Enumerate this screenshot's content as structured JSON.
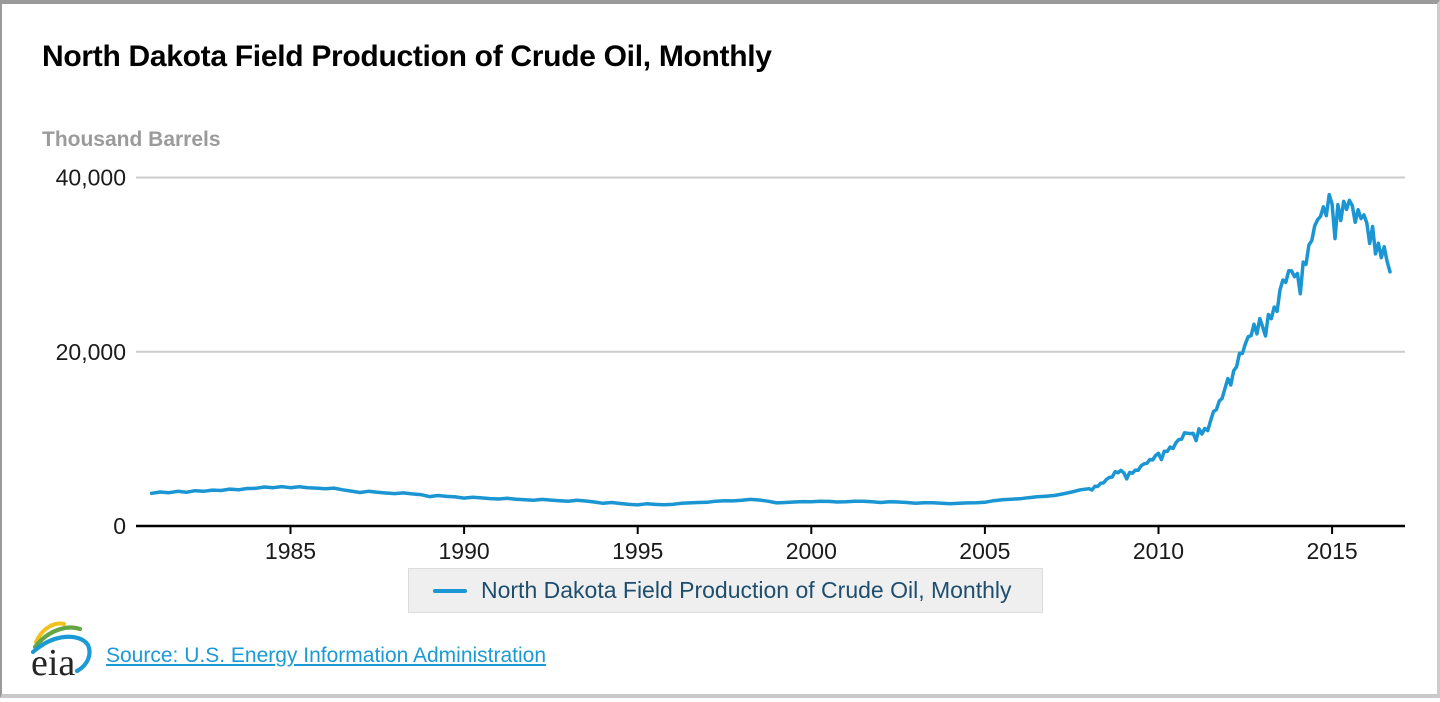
{
  "page": {
    "title": "North Dakota Field Production of Crude Oil, Monthly",
    "units_label": "Thousand Barrels",
    "source_link": "Source: U.S. Energy Information Administration",
    "logo_text": "eia"
  },
  "legend": {
    "label": "North Dakota Field Production of Crude Oil, Monthly"
  },
  "colors": {
    "line": "#1b96d2",
    "legend_swatch": "#1b96d2",
    "legend_text": "#1d4e6e",
    "legend_bg": "#efefef",
    "legend_border": "#dcdcdc",
    "grid": "#cccccc",
    "axis": "#000000",
    "tick_label": "#1a1a1a",
    "units_label": "#9b9b9b",
    "link": "#1b9ad6",
    "frame_dark": "#9a9a9a",
    "frame_light": "#cccccc",
    "logo_yellow": "#efc31c",
    "logo_green": "#62a744",
    "logo_blue": "#1c9ad6"
  },
  "chart_data": {
    "type": "line",
    "title": "North Dakota Field Production of Crude Oil, Monthly",
    "xlabel": "",
    "ylabel": "Thousand Barrels",
    "ylim": [
      0,
      40000
    ],
    "yticks": [
      0,
      20000,
      40000
    ],
    "ytick_labels": [
      "0",
      "20,000",
      "40,000"
    ],
    "xticks": [
      1985,
      1990,
      1995,
      2000,
      2005,
      2010,
      2015
    ],
    "xtick_labels": [
      "1985",
      "1990",
      "1995",
      "2000",
      "2005",
      "2010",
      "2015"
    ],
    "x_axis_range": [
      1980.55,
      2017.1
    ],
    "grid": "horizontal-only",
    "legend_position": "bottom",
    "series": [
      {
        "name": "North Dakota Field Production of Crude Oil, Monthly",
        "color": "#1b96d2",
        "x_unit": "decimal-year",
        "y_unit": "thousand barrels per month",
        "points": [
          [
            1981.0,
            3750
          ],
          [
            1981.25,
            3900
          ],
          [
            1981.5,
            3820
          ],
          [
            1981.75,
            3980
          ],
          [
            1982.0,
            3870
          ],
          [
            1982.25,
            4050
          ],
          [
            1982.5,
            3980
          ],
          [
            1982.75,
            4120
          ],
          [
            1983.0,
            4080
          ],
          [
            1983.25,
            4230
          ],
          [
            1983.5,
            4150
          ],
          [
            1983.75,
            4300
          ],
          [
            1984.0,
            4330
          ],
          [
            1984.25,
            4480
          ],
          [
            1984.5,
            4400
          ],
          [
            1984.75,
            4520
          ],
          [
            1985.0,
            4400
          ],
          [
            1985.25,
            4500
          ],
          [
            1985.5,
            4380
          ],
          [
            1985.75,
            4350
          ],
          [
            1986.0,
            4280
          ],
          [
            1986.25,
            4350
          ],
          [
            1986.5,
            4150
          ],
          [
            1986.75,
            4000
          ],
          [
            1987.0,
            3850
          ],
          [
            1987.25,
            3980
          ],
          [
            1987.5,
            3870
          ],
          [
            1987.75,
            3790
          ],
          [
            1988.0,
            3720
          ],
          [
            1988.25,
            3800
          ],
          [
            1988.5,
            3680
          ],
          [
            1988.75,
            3600
          ],
          [
            1989.0,
            3380
          ],
          [
            1989.25,
            3500
          ],
          [
            1989.5,
            3400
          ],
          [
            1989.75,
            3340
          ],
          [
            1990.0,
            3200
          ],
          [
            1990.25,
            3300
          ],
          [
            1990.5,
            3220
          ],
          [
            1990.75,
            3150
          ],
          [
            1991.0,
            3100
          ],
          [
            1991.25,
            3180
          ],
          [
            1991.5,
            3080
          ],
          [
            1991.75,
            3020
          ],
          [
            1992.0,
            2950
          ],
          [
            1992.25,
            3050
          ],
          [
            1992.5,
            2970
          ],
          [
            1992.75,
            2900
          ],
          [
            1993.0,
            2850
          ],
          [
            1993.25,
            2950
          ],
          [
            1993.5,
            2870
          ],
          [
            1993.75,
            2750
          ],
          [
            1994.0,
            2600
          ],
          [
            1994.25,
            2700
          ],
          [
            1994.5,
            2580
          ],
          [
            1994.75,
            2480
          ],
          [
            1995.0,
            2420
          ],
          [
            1995.25,
            2550
          ],
          [
            1995.5,
            2480
          ],
          [
            1995.75,
            2450
          ],
          [
            1996.0,
            2480
          ],
          [
            1996.25,
            2600
          ],
          [
            1996.5,
            2650
          ],
          [
            1996.75,
            2700
          ],
          [
            1997.0,
            2720
          ],
          [
            1997.25,
            2850
          ],
          [
            1997.5,
            2900
          ],
          [
            1997.75,
            2880
          ],
          [
            1998.0,
            2950
          ],
          [
            1998.25,
            3050
          ],
          [
            1998.5,
            2980
          ],
          [
            1998.75,
            2850
          ],
          [
            1999.0,
            2650
          ],
          [
            1999.25,
            2700
          ],
          [
            1999.5,
            2750
          ],
          [
            1999.75,
            2800
          ],
          [
            2000.0,
            2780
          ],
          [
            2000.25,
            2850
          ],
          [
            2000.5,
            2820
          ],
          [
            2000.75,
            2760
          ],
          [
            2001.0,
            2780
          ],
          [
            2001.25,
            2850
          ],
          [
            2001.5,
            2830
          ],
          [
            2001.75,
            2780
          ],
          [
            2002.0,
            2700
          ],
          [
            2002.25,
            2780
          ],
          [
            2002.5,
            2760
          ],
          [
            2002.75,
            2700
          ],
          [
            2003.0,
            2620
          ],
          [
            2003.25,
            2680
          ],
          [
            2003.5,
            2660
          ],
          [
            2003.75,
            2600
          ],
          [
            2004.0,
            2550
          ],
          [
            2004.25,
            2620
          ],
          [
            2004.5,
            2650
          ],
          [
            2004.75,
            2680
          ],
          [
            2005.0,
            2720
          ],
          [
            2005.25,
            2900
          ],
          [
            2005.5,
            3020
          ],
          [
            2005.75,
            3080
          ],
          [
            2006.0,
            3120
          ],
          [
            2006.25,
            3250
          ],
          [
            2006.5,
            3350
          ],
          [
            2006.75,
            3420
          ],
          [
            2007.0,
            3500
          ],
          [
            2007.25,
            3680
          ],
          [
            2007.5,
            3900
          ],
          [
            2007.75,
            4150
          ],
          [
            2008.0,
            4278
          ],
          [
            2008.083,
            4118
          ],
          [
            2008.167,
            4557
          ],
          [
            2008.25,
            4530
          ],
          [
            2008.333,
            4898
          ],
          [
            2008.417,
            4950
          ],
          [
            2008.5,
            5332
          ],
          [
            2008.583,
            5580
          ],
          [
            2008.667,
            5610
          ],
          [
            2008.75,
            6231
          ],
          [
            2008.833,
            6120
          ],
          [
            2008.917,
            6386
          ],
          [
            2009.0,
            6107
          ],
          [
            2009.083,
            5404
          ],
          [
            2009.167,
            6138
          ],
          [
            2009.25,
            6060
          ],
          [
            2009.333,
            6417
          ],
          [
            2009.417,
            6390
          ],
          [
            2009.5,
            6913
          ],
          [
            2009.583,
            7130
          ],
          [
            2009.667,
            7200
          ],
          [
            2009.75,
            7626
          ],
          [
            2009.833,
            7590
          ],
          [
            2009.917,
            8091
          ],
          [
            2010.0,
            8339
          ],
          [
            2010.083,
            7616
          ],
          [
            2010.167,
            8587
          ],
          [
            2010.25,
            8550
          ],
          [
            2010.333,
            9052
          ],
          [
            2010.417,
            8910
          ],
          [
            2010.5,
            9548
          ],
          [
            2010.583,
            9920
          ],
          [
            2010.667,
            9960
          ],
          [
            2010.75,
            10695
          ],
          [
            2010.833,
            10650
          ],
          [
            2010.917,
            10602
          ],
          [
            2011.0,
            10633
          ],
          [
            2011.083,
            9800
          ],
          [
            2011.167,
            11160
          ],
          [
            2011.25,
            10560
          ],
          [
            2011.333,
            11191
          ],
          [
            2011.417,
            10950
          ],
          [
            2011.5,
            12090
          ],
          [
            2011.583,
            13144
          ],
          [
            2011.667,
            13350
          ],
          [
            2011.75,
            14353
          ],
          [
            2011.833,
            14640
          ],
          [
            2011.917,
            15810
          ],
          [
            2012.0,
            16926
          ],
          [
            2012.083,
            16182
          ],
          [
            2012.167,
            17825
          ],
          [
            2012.25,
            18270
          ],
          [
            2012.333,
            19809
          ],
          [
            2012.417,
            19800
          ],
          [
            2012.5,
            20894
          ],
          [
            2012.583,
            21731
          ],
          [
            2012.667,
            21840
          ],
          [
            2012.75,
            23157
          ],
          [
            2012.833,
            22050
          ],
          [
            2012.917,
            23808
          ],
          [
            2013.0,
            22878
          ],
          [
            2013.083,
            21812
          ],
          [
            2013.167,
            24273
          ],
          [
            2013.25,
            23790
          ],
          [
            2013.333,
            25141
          ],
          [
            2013.417,
            24630
          ],
          [
            2013.5,
            27094
          ],
          [
            2013.583,
            28241
          ],
          [
            2013.667,
            27960
          ],
          [
            2013.75,
            29295
          ],
          [
            2013.833,
            29280
          ],
          [
            2013.917,
            28613
          ],
          [
            2014.0,
            28985
          ],
          [
            2014.083,
            26656
          ],
          [
            2014.167,
            30287
          ],
          [
            2014.25,
            30030
          ],
          [
            2014.333,
            32240
          ],
          [
            2014.417,
            32760
          ],
          [
            2014.5,
            34441
          ],
          [
            2014.583,
            35154
          ],
          [
            2014.667,
            35520
          ],
          [
            2014.75,
            36642
          ],
          [
            2014.833,
            35610
          ],
          [
            2014.917,
            38037
          ],
          [
            2015.0,
            36921
          ],
          [
            2015.083,
            32984
          ],
          [
            2015.167,
            36890
          ],
          [
            2015.25,
            35070
          ],
          [
            2015.333,
            37262
          ],
          [
            2015.417,
            36330
          ],
          [
            2015.5,
            37386
          ],
          [
            2015.583,
            36766
          ],
          [
            2015.667,
            34860
          ],
          [
            2015.75,
            36301
          ],
          [
            2015.833,
            35280
          ],
          [
            2015.917,
            35712
          ],
          [
            2016.0,
            34782
          ],
          [
            2016.083,
            32422
          ],
          [
            2016.167,
            34379
          ],
          [
            2016.25,
            31230
          ],
          [
            2016.333,
            32457
          ],
          [
            2016.417,
            30810
          ],
          [
            2016.5,
            32054
          ],
          [
            2016.583,
            30411
          ],
          [
            2016.667,
            29160
          ]
        ]
      }
    ]
  }
}
